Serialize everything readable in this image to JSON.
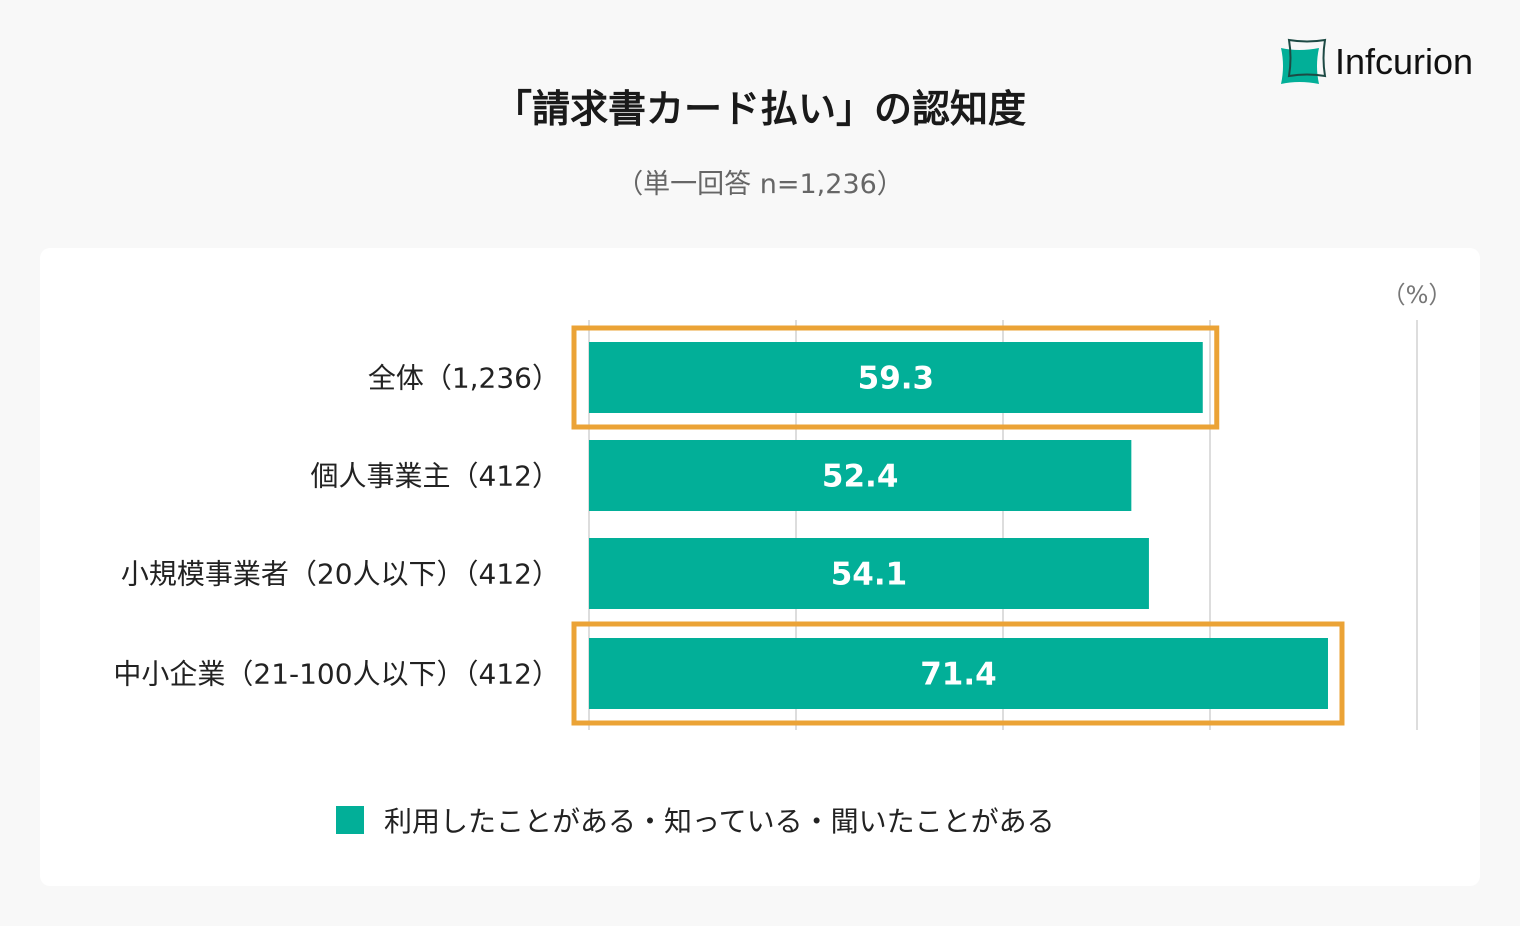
{
  "logo": {
    "text": "Infcurion"
  },
  "colors": {
    "bar": "#02af98",
    "highlight": "#eba336",
    "grid": "#dddddd"
  },
  "chart_data": {
    "type": "bar",
    "orientation": "horizontal",
    "title": "「請求書カード払い」の認知度",
    "subtitle": "（単一回答 n=1,236）",
    "unit_label": "（%）",
    "categories": [
      "全体（1,236）",
      "個人事業主（412）",
      "小規模事業者（20人以下）（412）",
      "中小企業（21-100人以下）（412）"
    ],
    "series": [
      {
        "name": "利用したことがある・知っている・聞いたことがある",
        "values": [
          59.3,
          52.4,
          54.1,
          71.4
        ]
      }
    ],
    "data_labels": [
      "59.3",
      "52.4",
      "54.1",
      "71.4"
    ],
    "highlighted": [
      0,
      3
    ],
    "xlim": [
      0,
      80
    ],
    "grid_step": 20,
    "grid": true,
    "legend_position": "bottom"
  }
}
